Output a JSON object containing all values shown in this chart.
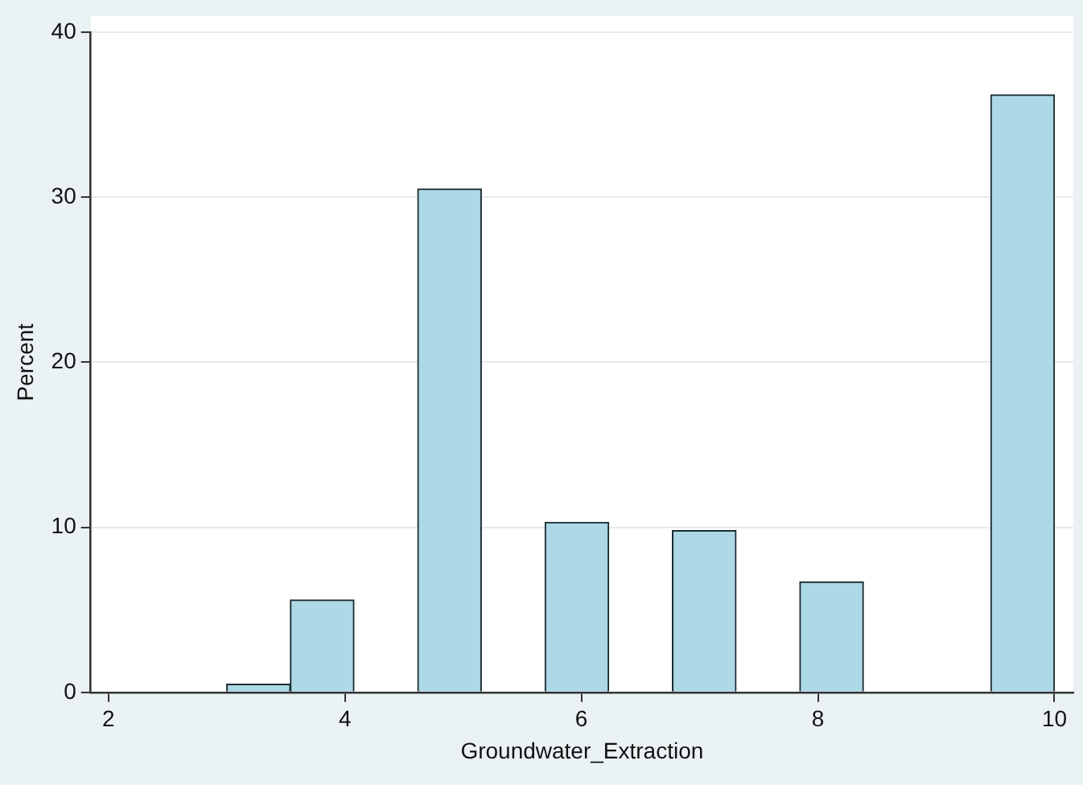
{
  "chart_data": {
    "type": "histogram",
    "xlabel": "Groundwater_Extraction",
    "ylabel": "Percent",
    "bins": [
      3,
      3.538,
      4.077,
      4.615,
      5.154,
      5.692,
      6.231,
      6.769,
      7.308,
      7.846,
      8.385,
      8.923,
      9.462,
      10
    ],
    "values": [
      0.5,
      5.6,
      0,
      30.5,
      0,
      10.3,
      0,
      9.8,
      0,
      6.7,
      0,
      0,
      36.2
    ],
    "color": "#add8e6",
    "xlim": [
      1.85,
      10.16
    ],
    "xticks": [
      2,
      4,
      6,
      8,
      10
    ],
    "ylim": [
      0,
      40
    ],
    "yticks": [
      0,
      10,
      20,
      30,
      40
    ],
    "grid": "y",
    "legend": false
  }
}
